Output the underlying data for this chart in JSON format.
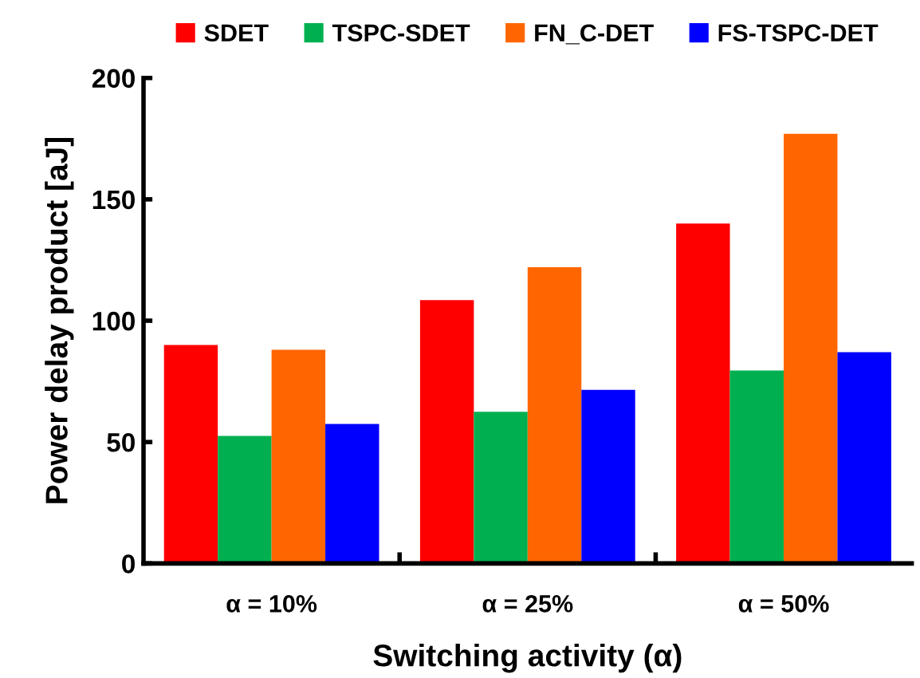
{
  "chart_data": {
    "type": "bar",
    "xlabel": "Switching activity (α)",
    "ylabel": "Power delay product [aJ]",
    "categories": [
      "α = 10%",
      "α = 25%",
      "α = 50%"
    ],
    "series": [
      {
        "name": "SDET",
        "color": "#ff0000",
        "values": [
          90,
          108.5,
          140
        ]
      },
      {
        "name": "TSPC-SDET",
        "color": "#00b050",
        "values": [
          52.5,
          62.5,
          79.5
        ]
      },
      {
        "name": "FN_C-DET",
        "color": "#ff6600",
        "values": [
          88,
          122,
          177
        ]
      },
      {
        "name": "FS-TSPC-DET",
        "color": "#0000ff",
        "values": [
          57.5,
          71.5,
          87
        ]
      }
    ],
    "ylim": [
      0,
      200
    ],
    "yticks": [
      0,
      50,
      100,
      150,
      200
    ],
    "grid": false,
    "legend": "top"
  }
}
